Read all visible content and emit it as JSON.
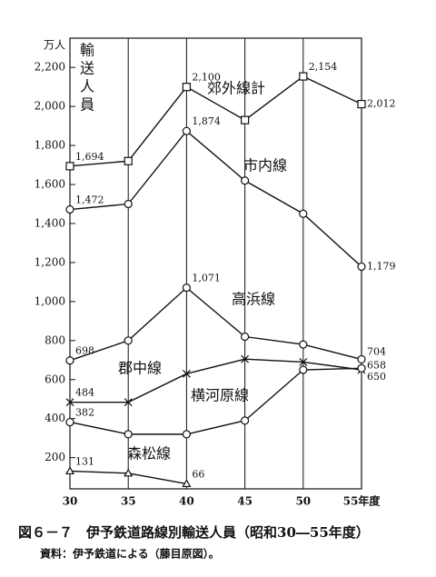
{
  "chart_data": {
    "type": "line",
    "title": "図６－７　伊予鉄道路線別輸送人員（昭和30―55年度）",
    "subtitle": "資料：伊予鉄道による（藤目原図）。",
    "y_unit": "万人",
    "y_label": "輸送人員",
    "x": [
      30,
      35,
      40,
      45,
      50,
      55
    ],
    "xlim": [
      30,
      55
    ],
    "xticks": [
      30,
      35,
      40,
      45,
      50,
      {
        "value": 55,
        "label": "55年度"
      }
    ],
    "ylim": [
      40,
      2350
    ],
    "yticks": [
      200,
      400,
      600,
      800,
      {
        "value": 1000,
        "label": "1,000"
      },
      {
        "value": 1200,
        "label": "1,200"
      },
      {
        "value": 1400,
        "label": "1,400"
      },
      {
        "value": 1600,
        "label": "1,600"
      },
      {
        "value": 1800,
        "label": "1,800"
      },
      {
        "value": 2000,
        "label": "2,000"
      },
      {
        "value": 2200,
        "label": "2,200"
      }
    ],
    "grid": "x",
    "series": [
      {
        "name": "郊外線計",
        "color": "#111",
        "marker": "square",
        "values": [
          1694,
          1720,
          2100,
          1930,
          2154,
          2012
        ],
        "value_labels": [
          "1,694",
          null,
          "2,100",
          null,
          "2,154",
          "2,012"
        ]
      },
      {
        "name": "市内線",
        "color": "#111",
        "marker": "circle",
        "values": [
          1472,
          1500,
          1874,
          1620,
          1450,
          1179
        ],
        "value_labels": [
          "1,472",
          null,
          "1,874",
          null,
          null,
          "1,179"
        ]
      },
      {
        "name": "高浜線",
        "color": "#111",
        "marker": "circle",
        "values": [
          698,
          800,
          1071,
          820,
          780,
          704
        ],
        "value_labels": [
          "698",
          null,
          "1,071",
          null,
          null,
          "704"
        ]
      },
      {
        "name": "郡中線",
        "color": "#111",
        "marker": "x",
        "values": [
          484,
          484,
          630,
          705,
          690,
          650
        ],
        "value_labels": [
          "484",
          null,
          null,
          null,
          null,
          "650"
        ]
      },
      {
        "name": "横河原線",
        "color": "#111",
        "marker": "circle",
        "values": [
          382,
          320,
          320,
          390,
          650,
          658
        ],
        "value_labels": [
          "382",
          null,
          null,
          null,
          null,
          "658"
        ]
      },
      {
        "name": "森松線",
        "color": "#111",
        "marker": "triangle",
        "values": [
          131,
          120,
          66,
          null,
          null,
          null
        ],
        "value_labels": [
          "131",
          null,
          "66",
          null,
          null,
          null
        ]
      }
    ]
  }
}
